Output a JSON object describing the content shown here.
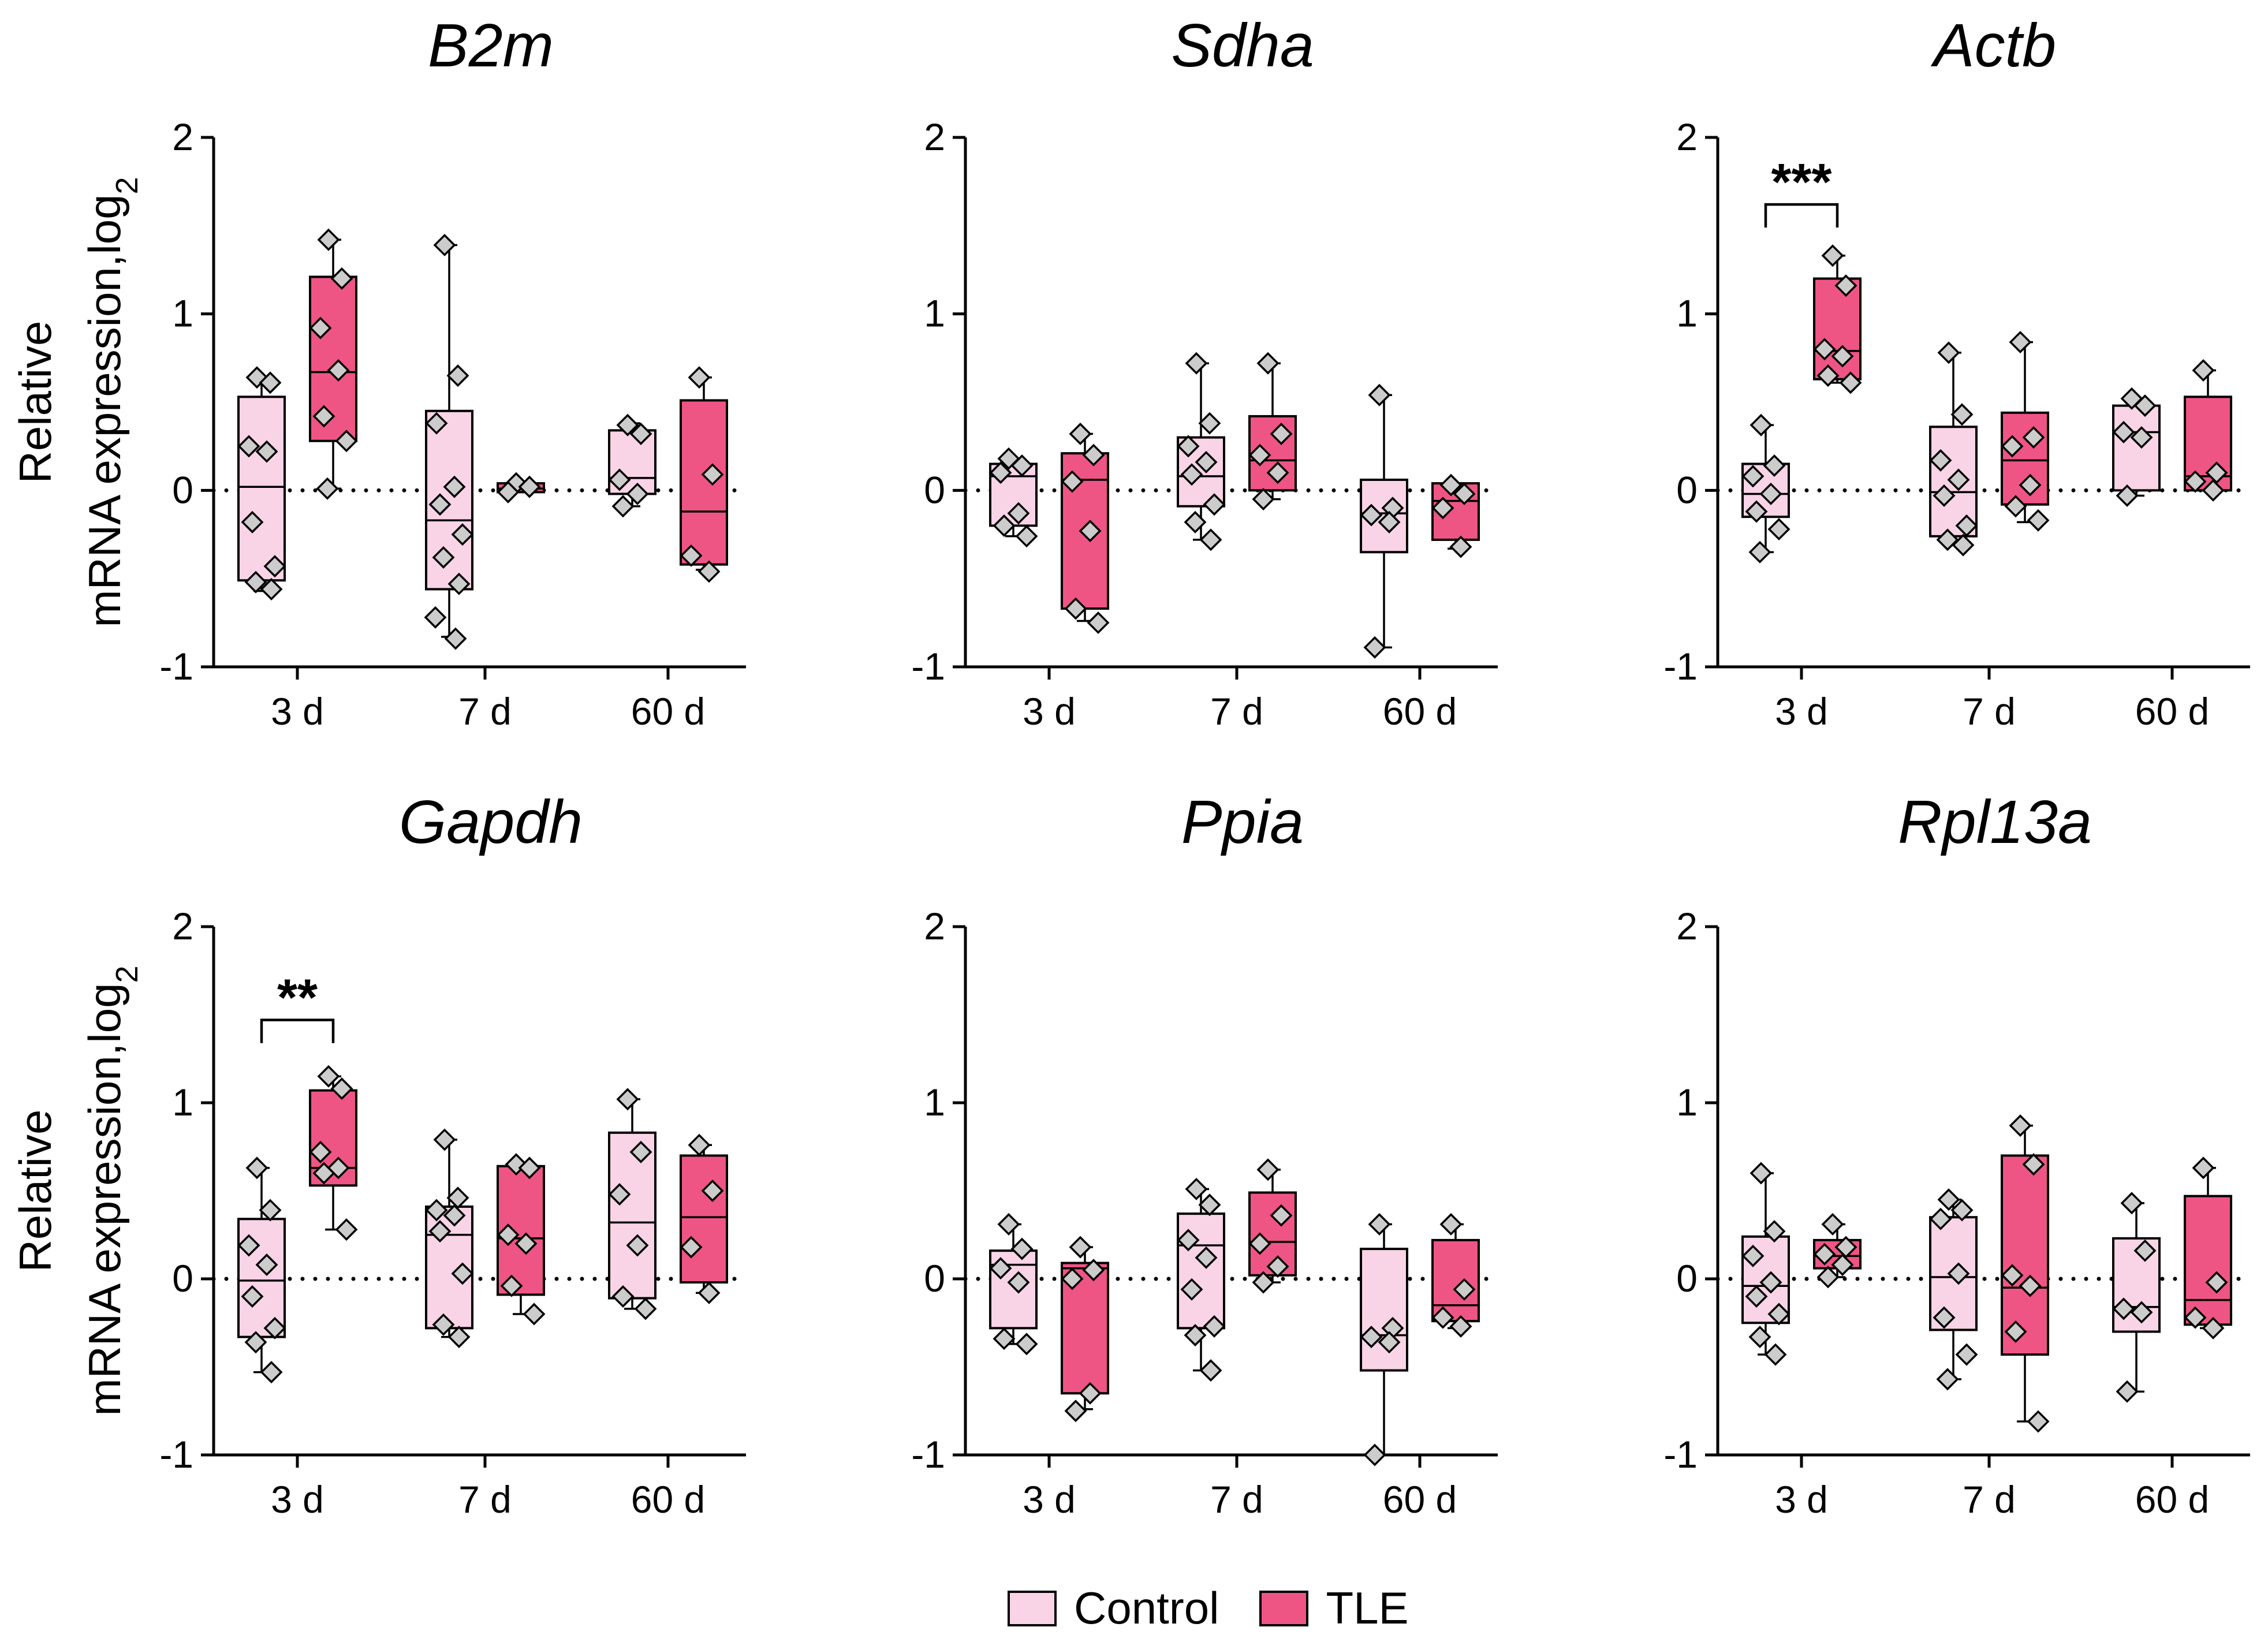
{
  "colors": {
    "control": "#f9d3e6",
    "tle": "#ee5585",
    "marker": "#cccccc"
  },
  "y_axis_label": {
    "line1": "Relative",
    "line2": "mRNA expression,log",
    "sub": "2"
  },
  "legend": [
    {
      "label": "Control",
      "group": "control"
    },
    {
      "label": "TLE",
      "group": "tle"
    }
  ],
  "chart_data": [
    {
      "type": "box",
      "title": "B2m",
      "categories": [
        "3 d",
        "7 d",
        "60 d"
      ],
      "yticks": [
        "2",
        "1",
        "0",
        "-1"
      ],
      "ylim": [
        -1,
        2
      ],
      "reference_line": 0,
      "boxes": [
        {
          "category": "3 d",
          "group": "control",
          "min": -0.57,
          "q1": -0.51,
          "median": 0.02,
          "q3": 0.53,
          "max": 0.64,
          "points": [
            0.64,
            0.61,
            0.25,
            0.22,
            -0.18,
            -0.43,
            -0.52,
            -0.56
          ]
        },
        {
          "category": "3 d",
          "group": "tle",
          "min": 0.01,
          "q1": 0.28,
          "median": 0.67,
          "q3": 1.21,
          "max": 1.42,
          "points": [
            1.42,
            1.2,
            0.92,
            0.68,
            0.42,
            0.28,
            0.01
          ]
        },
        {
          "category": "7 d",
          "group": "control",
          "min": -0.83,
          "q1": -0.56,
          "median": -0.17,
          "q3": 0.45,
          "max": 1.39,
          "points": [
            1.39,
            0.65,
            0.38,
            0.02,
            -0.08,
            -0.25,
            -0.38,
            -0.53,
            -0.72,
            -0.84
          ]
        },
        {
          "category": "7 d",
          "group": "tle",
          "min": -0.01,
          "q1": -0.01,
          "median": 0.01,
          "q3": 0.04,
          "max": 0.04,
          "points": [
            0.04,
            0.02,
            -0.01
          ]
        },
        {
          "category": "60 d",
          "group": "control",
          "min": -0.09,
          "q1": -0.02,
          "median": 0.07,
          "q3": 0.34,
          "max": 0.38,
          "points": [
            0.37,
            0.32,
            0.06,
            -0.02,
            -0.09
          ]
        },
        {
          "category": "60 d",
          "group": "tle",
          "min": -0.45,
          "q1": -0.42,
          "median": -0.12,
          "q3": 0.51,
          "max": 0.64,
          "points": [
            0.64,
            0.09,
            -0.37,
            -0.46
          ]
        }
      ]
    },
    {
      "type": "box",
      "title": "Sdha",
      "categories": [
        "3 d",
        "7 d",
        "60 d"
      ],
      "yticks": [
        "2",
        "1",
        "0",
        "-1"
      ],
      "ylim": [
        -1,
        2
      ],
      "reference_line": 0,
      "boxes": [
        {
          "category": "3 d",
          "group": "control",
          "min": -0.26,
          "q1": -0.2,
          "median": 0.08,
          "q3": 0.15,
          "max": 0.18,
          "points": [
            0.18,
            0.14,
            0.1,
            -0.13,
            -0.2,
            -0.26
          ]
        },
        {
          "category": "3 d",
          "group": "tle",
          "min": -0.74,
          "q1": -0.67,
          "median": 0.06,
          "q3": 0.21,
          "max": 0.32,
          "points": [
            0.32,
            0.2,
            0.05,
            -0.23,
            -0.67,
            -0.75
          ]
        },
        {
          "category": "7 d",
          "group": "control",
          "min": -0.28,
          "q1": -0.09,
          "median": 0.08,
          "q3": 0.3,
          "max": 0.72,
          "points": [
            0.72,
            0.38,
            0.25,
            0.16,
            0.09,
            -0.08,
            -0.18,
            -0.28
          ]
        },
        {
          "category": "7 d",
          "group": "tle",
          "min": -0.05,
          "q1": 0.0,
          "median": 0.17,
          "q3": 0.42,
          "max": 0.72,
          "points": [
            0.72,
            0.32,
            0.2,
            0.1,
            -0.05
          ]
        },
        {
          "category": "60 d",
          "group": "control",
          "min": -0.89,
          "q1": -0.35,
          "median": -0.13,
          "q3": 0.06,
          "max": 0.54,
          "points": [
            0.54,
            -0.1,
            -0.14,
            -0.18,
            -0.89
          ]
        },
        {
          "category": "60 d",
          "group": "tle",
          "min": -0.33,
          "q1": -0.28,
          "median": -0.06,
          "q3": 0.04,
          "max": 0.04,
          "points": [
            0.03,
            -0.02,
            -0.1,
            -0.32
          ]
        }
      ]
    },
    {
      "type": "box",
      "title": "Actb",
      "categories": [
        "3 d",
        "7 d",
        "60 d"
      ],
      "yticks": [
        "2",
        "1",
        "0",
        "-1"
      ],
      "ylim": [
        -1,
        2
      ],
      "reference_line": 0,
      "significance": {
        "label": "***",
        "between": [
          "control",
          "tle"
        ],
        "category": "3 d",
        "y": 1.62
      },
      "boxes": [
        {
          "category": "3 d",
          "group": "control",
          "min": -0.35,
          "q1": -0.15,
          "median": -0.02,
          "q3": 0.15,
          "max": 0.37,
          "points": [
            0.37,
            0.14,
            0.08,
            -0.02,
            -0.12,
            -0.22,
            -0.35
          ]
        },
        {
          "category": "3 d",
          "group": "tle",
          "min": 0.61,
          "q1": 0.63,
          "median": 0.79,
          "q3": 1.2,
          "max": 1.33,
          "points": [
            1.33,
            1.16,
            0.8,
            0.76,
            0.65,
            0.61
          ]
        },
        {
          "category": "7 d",
          "group": "control",
          "min": -0.31,
          "q1": -0.26,
          "median": -0.01,
          "q3": 0.36,
          "max": 0.78,
          "points": [
            0.78,
            0.43,
            0.17,
            0.06,
            -0.03,
            -0.2,
            -0.28,
            -0.31
          ]
        },
        {
          "category": "7 d",
          "group": "tle",
          "min": -0.18,
          "q1": -0.08,
          "median": 0.17,
          "q3": 0.44,
          "max": 0.84,
          "points": [
            0.84,
            0.3,
            0.25,
            0.03,
            -0.09,
            -0.17
          ]
        },
        {
          "category": "60 d",
          "group": "control",
          "min": -0.03,
          "q1": 0.0,
          "median": 0.33,
          "q3": 0.48,
          "max": 0.52,
          "points": [
            0.52,
            0.48,
            0.33,
            0.3,
            -0.03
          ]
        },
        {
          "category": "60 d",
          "group": "tle",
          "min": 0.0,
          "q1": 0.0,
          "median": 0.08,
          "q3": 0.53,
          "max": 0.68,
          "points": [
            0.68,
            0.1,
            0.05,
            0.0
          ]
        }
      ]
    },
    {
      "type": "box",
      "title": "Gapdh",
      "categories": [
        "3 d",
        "7 d",
        "60 d"
      ],
      "yticks": [
        "2",
        "1",
        "0",
        "-1"
      ],
      "ylim": [
        -1,
        2
      ],
      "reference_line": 0,
      "significance": {
        "label": "**",
        "between": [
          "control",
          "tle"
        ],
        "category": "3 d",
        "y": 1.47
      },
      "boxes": [
        {
          "category": "3 d",
          "group": "control",
          "min": -0.53,
          "q1": -0.33,
          "median": -0.01,
          "q3": 0.34,
          "max": 0.63,
          "points": [
            0.63,
            0.39,
            0.19,
            0.08,
            -0.1,
            -0.28,
            -0.36,
            -0.53
          ]
        },
        {
          "category": "3 d",
          "group": "tle",
          "min": 0.28,
          "q1": 0.53,
          "median": 0.63,
          "q3": 1.07,
          "max": 1.15,
          "points": [
            1.15,
            1.08,
            0.72,
            0.63,
            0.6,
            0.28
          ]
        },
        {
          "category": "7 d",
          "group": "control",
          "min": -0.33,
          "q1": -0.28,
          "median": 0.25,
          "q3": 0.41,
          "max": 0.79,
          "points": [
            0.79,
            0.46,
            0.39,
            0.36,
            0.27,
            0.03,
            -0.26,
            -0.33
          ]
        },
        {
          "category": "7 d",
          "group": "tle",
          "min": -0.2,
          "q1": -0.09,
          "median": 0.23,
          "q3": 0.64,
          "max": 0.65,
          "points": [
            0.65,
            0.63,
            0.25,
            0.2,
            -0.04,
            -0.2
          ]
        },
        {
          "category": "60 d",
          "group": "control",
          "min": -0.17,
          "q1": -0.11,
          "median": 0.32,
          "q3": 0.83,
          "max": 1.02,
          "points": [
            1.02,
            0.72,
            0.48,
            0.19,
            -0.1,
            -0.17
          ]
        },
        {
          "category": "60 d",
          "group": "tle",
          "min": -0.08,
          "q1": -0.02,
          "median": 0.35,
          "q3": 0.7,
          "max": 0.76,
          "points": [
            0.76,
            0.5,
            0.18,
            -0.08
          ]
        }
      ]
    },
    {
      "type": "box",
      "title": "Ppia",
      "categories": [
        "3 d",
        "7 d",
        "60 d"
      ],
      "yticks": [
        "2",
        "1",
        "0",
        "-1"
      ],
      "ylim": [
        -1,
        2
      ],
      "reference_line": 0,
      "boxes": [
        {
          "category": "3 d",
          "group": "control",
          "min": -0.37,
          "q1": -0.28,
          "median": 0.08,
          "q3": 0.16,
          "max": 0.31,
          "points": [
            0.31,
            0.17,
            0.06,
            -0.02,
            -0.34,
            -0.37
          ]
        },
        {
          "category": "3 d",
          "group": "tle",
          "min": -0.74,
          "q1": -0.65,
          "median": 0.06,
          "q3": 0.09,
          "max": 0.18,
          "points": [
            0.18,
            0.05,
            0.0,
            -0.65,
            -0.75
          ]
        },
        {
          "category": "7 d",
          "group": "control",
          "min": -0.52,
          "q1": -0.28,
          "median": 0.19,
          "q3": 0.37,
          "max": 0.51,
          "points": [
            0.51,
            0.42,
            0.22,
            0.12,
            -0.06,
            -0.27,
            -0.32,
            -0.52
          ]
        },
        {
          "category": "7 d",
          "group": "tle",
          "min": -0.02,
          "q1": 0.02,
          "median": 0.21,
          "q3": 0.49,
          "max": 0.62,
          "points": [
            0.62,
            0.36,
            0.2,
            0.07,
            -0.02
          ]
        },
        {
          "category": "60 d",
          "group": "control",
          "min": -1.0,
          "q1": -0.52,
          "median": -0.32,
          "q3": 0.17,
          "max": 0.31,
          "points": [
            0.31,
            -0.28,
            -0.33,
            -0.36,
            -1.0
          ]
        },
        {
          "category": "60 d",
          "group": "tle",
          "min": -0.28,
          "q1": -0.24,
          "median": -0.15,
          "q3": 0.22,
          "max": 0.31,
          "points": [
            0.31,
            -0.06,
            -0.22,
            -0.27
          ]
        }
      ]
    },
    {
      "type": "box",
      "title": "Rpl13a",
      "categories": [
        "3 d",
        "7 d",
        "60 d"
      ],
      "yticks": [
        "2",
        "1",
        "0",
        "-1"
      ],
      "ylim": [
        -1,
        2
      ],
      "reference_line": 0,
      "boxes": [
        {
          "category": "3 d",
          "group": "control",
          "min": -0.43,
          "q1": -0.25,
          "median": -0.04,
          "q3": 0.24,
          "max": 0.6,
          "points": [
            0.6,
            0.27,
            0.13,
            -0.02,
            -0.1,
            -0.2,
            -0.33,
            -0.43
          ]
        },
        {
          "category": "3 d",
          "group": "tle",
          "min": 0.01,
          "q1": 0.06,
          "median": 0.13,
          "q3": 0.22,
          "max": 0.31,
          "points": [
            0.31,
            0.18,
            0.14,
            0.08,
            0.01
          ]
        },
        {
          "category": "7 d",
          "group": "control",
          "min": -0.57,
          "q1": -0.29,
          "median": 0.01,
          "q3": 0.35,
          "max": 0.45,
          "points": [
            0.45,
            0.39,
            0.34,
            0.03,
            -0.22,
            -0.43,
            -0.57
          ]
        },
        {
          "category": "7 d",
          "group": "tle",
          "min": -0.81,
          "q1": -0.43,
          "median": -0.05,
          "q3": 0.7,
          "max": 0.87,
          "points": [
            0.87,
            0.65,
            0.02,
            -0.04,
            -0.3,
            -0.81
          ]
        },
        {
          "category": "60 d",
          "group": "control",
          "min": -0.64,
          "q1": -0.3,
          "median": -0.16,
          "q3": 0.23,
          "max": 0.43,
          "points": [
            0.43,
            0.16,
            -0.17,
            -0.19,
            -0.64
          ]
        },
        {
          "category": "60 d",
          "group": "tle",
          "min": -0.28,
          "q1": -0.26,
          "median": -0.12,
          "q3": 0.47,
          "max": 0.63,
          "points": [
            0.63,
            -0.02,
            -0.22,
            -0.28
          ]
        }
      ]
    }
  ]
}
